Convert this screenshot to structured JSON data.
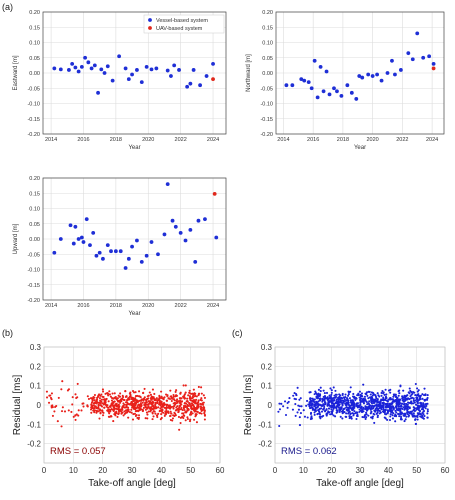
{
  "panel_labels": {
    "a": "(a)",
    "b": "(b)",
    "c": "(c)"
  },
  "colors": {
    "vessel": "#1f2fd6",
    "uav": "#e0281c",
    "resid_b": "#e8201a",
    "resid_c": "#1a22d8",
    "rms_b": "#8b0000",
    "rms_c": "#1a1a8c",
    "grid": "#dcdcdc"
  },
  "chart_data": [
    {
      "id": "eastward",
      "type": "scatter",
      "xlabel": "Year",
      "ylabel": "Eastward [m]",
      "xlim": [
        2013.5,
        2024.8
      ],
      "ylim": [
        -0.2,
        0.2
      ],
      "xticks": [
        2014,
        2016,
        2018,
        2020,
        2022,
        2024
      ],
      "yticks": [
        -0.2,
        -0.15,
        -0.1,
        -0.05,
        0,
        0.05,
        0.1,
        0.15,
        0.2
      ],
      "ytick_labels": [
        "-0.20",
        "-0.15",
        "-0.10",
        "-0.05",
        "0.00",
        "0.05",
        "0.10",
        "0.15",
        "0.20"
      ],
      "legend": {
        "position": "top-right",
        "entries": [
          "Vessel-based system",
          "UAV-based system"
        ]
      },
      "series": [
        {
          "name": "Vessel-based system",
          "x": [
            2014.2,
            2014.6,
            2015.1,
            2015.3,
            2015.5,
            2015.7,
            2015.9,
            2016.1,
            2016.3,
            2016.5,
            2016.7,
            2016.9,
            2017.1,
            2017.3,
            2017.5,
            2017.8,
            2018.2,
            2018.6,
            2018.8,
            2019.0,
            2019.3,
            2019.6,
            2019.9,
            2020.2,
            2020.5,
            2021.2,
            2021.4,
            2021.6,
            2021.9,
            2022.4,
            2022.6,
            2022.8,
            2023.2,
            2023.6,
            2024.0
          ],
          "y": [
            0.015,
            0.012,
            0.01,
            0.03,
            0.018,
            0.005,
            0.02,
            0.05,
            0.035,
            0.015,
            0.025,
            -0.065,
            0.012,
            0.0,
            0.022,
            -0.025,
            0.055,
            0.015,
            -0.02,
            -0.005,
            0.01,
            -0.03,
            0.02,
            0.012,
            0.015,
            0.008,
            -0.01,
            0.025,
            0.01,
            -0.045,
            -0.035,
            0.01,
            -0.04,
            -0.01,
            0.03
          ]
        },
        {
          "name": "UAV-based system",
          "x": [
            2024.0
          ],
          "y": [
            -0.02
          ]
        }
      ]
    },
    {
      "id": "northward",
      "type": "scatter",
      "xlabel": "Year",
      "ylabel": "Northward [m]",
      "xlim": [
        2013.5,
        2024.8
      ],
      "ylim": [
        -0.2,
        0.2
      ],
      "xticks": [
        2014,
        2016,
        2018,
        2020,
        2022,
        2024
      ],
      "yticks": [
        -0.2,
        -0.15,
        -0.1,
        -0.05,
        0,
        0.05,
        0.1,
        0.15,
        0.2
      ],
      "ytick_labels": [
        "-0.20",
        "-0.15",
        "-0.10",
        "-0.05",
        "0.00",
        "0.05",
        "0.10",
        "0.15",
        "0.20"
      ],
      "series": [
        {
          "name": "Vessel-based system",
          "x": [
            2014.2,
            2014.6,
            2015.2,
            2015.4,
            2015.7,
            2015.9,
            2016.1,
            2016.3,
            2016.5,
            2016.7,
            2016.9,
            2017.1,
            2017.4,
            2017.6,
            2017.9,
            2018.3,
            2018.6,
            2018.9,
            2019.1,
            2019.3,
            2019.7,
            2020.0,
            2020.3,
            2020.6,
            2021.0,
            2021.3,
            2021.5,
            2021.9,
            2022.4,
            2022.7,
            2023.0,
            2023.4,
            2023.8,
            2024.1
          ],
          "y": [
            -0.04,
            -0.04,
            -0.02,
            -0.025,
            -0.03,
            -0.05,
            0.04,
            -0.08,
            0.02,
            -0.06,
            0.005,
            -0.07,
            -0.05,
            -0.06,
            -0.075,
            -0.04,
            -0.065,
            -0.085,
            -0.01,
            -0.015,
            -0.005,
            -0.01,
            -0.005,
            -0.025,
            0.0,
            0.04,
            -0.005,
            0.01,
            0.065,
            0.045,
            0.13,
            0.05,
            0.055,
            0.03
          ]
        },
        {
          "name": "UAV-based system",
          "x": [
            2024.1
          ],
          "y": [
            0.015
          ]
        }
      ]
    },
    {
      "id": "upward",
      "type": "scatter",
      "xlabel": "Year",
      "ylabel": "Upward [m]",
      "xlim": [
        2013.5,
        2024.8
      ],
      "ylim": [
        -0.2,
        0.2
      ],
      "xticks": [
        2014,
        2016,
        2018,
        2020,
        2022,
        2024
      ],
      "yticks": [
        -0.2,
        -0.15,
        -0.1,
        -0.05,
        0,
        0.05,
        0.1,
        0.15,
        0.2
      ],
      "ytick_labels": [
        "-0.20",
        "-0.15",
        "-0.10",
        "-0.05",
        "0.00",
        "0.05",
        "0.10",
        "0.15",
        "0.20"
      ],
      "series": [
        {
          "name": "Vessel-based system",
          "x": [
            2014.2,
            2014.6,
            2015.2,
            2015.4,
            2015.5,
            2015.7,
            2015.9,
            2016.0,
            2016.2,
            2016.4,
            2016.6,
            2016.8,
            2017.0,
            2017.2,
            2017.5,
            2017.7,
            2018.0,
            2018.3,
            2018.6,
            2018.8,
            2019.0,
            2019.3,
            2019.6,
            2019.9,
            2020.2,
            2020.6,
            2021.0,
            2021.2,
            2021.5,
            2021.7,
            2022.0,
            2022.3,
            2022.6,
            2022.9,
            2023.1,
            2023.5,
            2024.2
          ],
          "y": [
            -0.045,
            0.0,
            0.045,
            -0.015,
            0.04,
            0.0,
            0.005,
            -0.01,
            0.065,
            -0.02,
            0.02,
            -0.055,
            -0.045,
            -0.065,
            -0.02,
            -0.04,
            -0.04,
            -0.04,
            -0.095,
            -0.065,
            -0.025,
            -0.005,
            -0.075,
            -0.055,
            -0.01,
            -0.05,
            0.015,
            0.18,
            0.06,
            0.04,
            0.02,
            -0.005,
            0.03,
            -0.075,
            0.06,
            0.065,
            0.005
          ]
        },
        {
          "name": "UAV-based system",
          "x": [
            2024.1
          ],
          "y": [
            0.148
          ]
        }
      ]
    },
    {
      "id": "residual_vessel",
      "type": "scatter",
      "xlabel": "Take-off angle [deg]",
      "ylabel": "Residual [ms]",
      "xlim": [
        0,
        60
      ],
      "ylim": [
        -0.3,
        0.3
      ],
      "xticks": [
        0,
        10,
        20,
        30,
        40,
        50,
        60
      ],
      "yticks": [
        -0.3,
        -0.2,
        -0.1,
        0,
        0.1,
        0.2,
        0.3
      ],
      "ytick_labels": [
        "",
        "-0.2",
        "-0.1",
        "0",
        "0.1",
        "0.2",
        "0.3"
      ],
      "annotation": "RMS = 0.057",
      "rms": 0.057,
      "cloud": {
        "n": 900,
        "x_range": [
          1,
          55
        ],
        "seed": 11,
        "dense_from": 16
      }
    },
    {
      "id": "residual_uav",
      "type": "scatter",
      "xlabel": "Take-off angle [deg]",
      "ylabel": "Residual [ms]",
      "xlim": [
        0,
        60
      ],
      "ylim": [
        -0.3,
        0.3
      ],
      "xticks": [
        0,
        10,
        20,
        30,
        40,
        50,
        60
      ],
      "yticks": [
        -0.3,
        -0.2,
        -0.1,
        0,
        0.1,
        0.2,
        0.3
      ],
      "ytick_labels": [
        "",
        "-0.2",
        "-0.1",
        "0",
        "0.1",
        "0.2",
        "0.3"
      ],
      "annotation": "RMS = 0.062",
      "rms": 0.062,
      "cloud": {
        "n": 1100,
        "x_range": [
          1,
          54
        ],
        "seed": 29,
        "dense_from": 12
      }
    }
  ]
}
